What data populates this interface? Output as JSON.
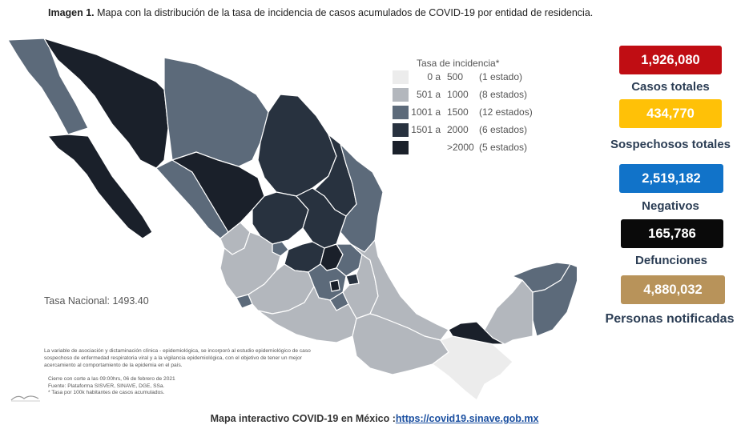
{
  "caption": {
    "lead": "Imagen 1.",
    "text": " Mapa con la distribución de la tasa de incidencia de casos acumulados de COVID-19 por entidad de residencia."
  },
  "legend": {
    "title": "Tasa de incidencia*",
    "rows": [
      {
        "lo": "0 a",
        "hi": "500",
        "count": "(1 estado)",
        "color": "#ececec"
      },
      {
        "lo": "501 a",
        "hi": "1000",
        "count": "(8 estados)",
        "color": "#b3b7bd"
      },
      {
        "lo": "1001 a",
        "hi": "1500",
        "count": "(12 estados)",
        "color": "#5c6a7a"
      },
      {
        "lo": "1501 a",
        "hi": "2000",
        "count": "(6 estados)",
        "color": "#28323f"
      },
      {
        "lo": "",
        "hi": ">2000",
        "count": "(5 estados)",
        "color": "#1a202a"
      }
    ]
  },
  "tasa_nacional": "Tasa Nacional: 1493.40",
  "notes": {
    "paragraph": "La variable de asociación y dictaminación clínica - epidemiológica, se incorporó al estudio epidemiológico de caso sospechoso de enfermedad respiratoria viral y a la vigilancia epidemiológica, con el objetivo de tener un mejor acercamiento al comportamiento de la epidemia en el país.",
    "cierre": "Cierre con corte a las 09:00hrs, 06 de febrero de 2021",
    "fuente": "Fuente: Plataforma SISVER, SINAVE, DGE, SSa.",
    "tasa": "* Tasa por 100k habitantes de casos acumulados."
  },
  "stats": [
    {
      "value": "1,926,080",
      "label": "Casos totales",
      "color": "#c00d13",
      "text_color": "#ffffff"
    },
    {
      "value": "434,770",
      "label": "Sospechosos totales",
      "color": "#ffc107",
      "text_color": "#ffffff"
    },
    {
      "value": "2,519,182",
      "label": "Negativos",
      "color": "#1173c9",
      "text_color": "#ffffff"
    },
    {
      "value": "165,786",
      "label": "Defunciones",
      "color": "#0a0a0a",
      "text_color": "#ffffff"
    },
    {
      "value": "4,880,032",
      "label": "Personas notificadas",
      "color": "#b8935a",
      "text_color": "#ffffff"
    }
  ],
  "footer": {
    "text": "Mapa interactivo COVID-19 en México :",
    "link": "https://covid19.sinave.gob.mx"
  },
  "map_colors": {
    "very_dark": "#1a202a",
    "dark": "#28323f",
    "medium": "#5c6a7a",
    "light": "#b3b7bd",
    "lightest": "#ececec",
    "border": "#ffffff"
  }
}
